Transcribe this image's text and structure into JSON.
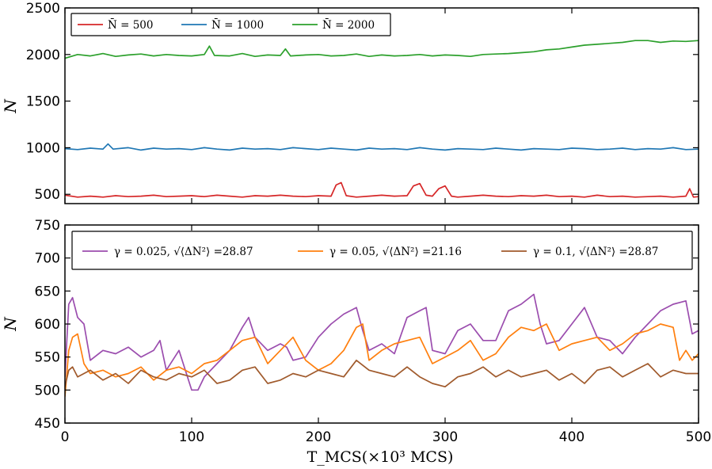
{
  "chart_data": [
    {
      "type": "line",
      "ylabel": "N",
      "ylim": [
        400,
        2500
      ],
      "xlim": [
        0,
        500
      ],
      "yticks": [
        "500",
        "1000",
        "1500",
        "2000",
        "2500"
      ],
      "legend": {
        "location": "top-left",
        "entries": [
          "N̄ = 500",
          "N̄ = 1000",
          "N̄ = 2000"
        ]
      },
      "series": [
        {
          "name": "N̄ = 500",
          "color": "#d62728",
          "x": [
            0,
            10,
            20,
            30,
            40,
            50,
            60,
            70,
            80,
            90,
            100,
            110,
            120,
            130,
            140,
            150,
            160,
            170,
            180,
            190,
            200,
            210,
            214,
            218,
            222,
            230,
            240,
            250,
            260,
            270,
            275,
            280,
            285,
            290,
            295,
            300,
            305,
            310,
            320,
            330,
            340,
            350,
            360,
            370,
            380,
            390,
            400,
            410,
            420,
            430,
            440,
            450,
            460,
            470,
            480,
            490,
            493,
            496,
            500
          ],
          "y": [
            490,
            470,
            480,
            470,
            485,
            475,
            480,
            490,
            475,
            480,
            485,
            475,
            490,
            480,
            470,
            485,
            480,
            490,
            480,
            475,
            485,
            480,
            600,
            625,
            485,
            470,
            480,
            490,
            480,
            485,
            590,
            615,
            490,
            480,
            560,
            590,
            480,
            470,
            480,
            490,
            480,
            475,
            485,
            480,
            490,
            475,
            480,
            470,
            490,
            475,
            480,
            470,
            475,
            480,
            470,
            480,
            560,
            470,
            475
          ]
        },
        {
          "name": "N̄ = 1000",
          "color": "#1f77b4",
          "x": [
            0,
            10,
            20,
            30,
            34,
            38,
            50,
            60,
            70,
            80,
            90,
            100,
            110,
            120,
            130,
            140,
            150,
            160,
            170,
            180,
            190,
            200,
            210,
            220,
            230,
            240,
            250,
            260,
            270,
            280,
            290,
            300,
            310,
            320,
            330,
            340,
            350,
            360,
            370,
            380,
            390,
            400,
            410,
            420,
            430,
            440,
            450,
            460,
            470,
            480,
            490,
            500
          ],
          "y": [
            990,
            980,
            995,
            985,
            1040,
            985,
            1000,
            975,
            995,
            985,
            990,
            980,
            1000,
            985,
            975,
            995,
            985,
            990,
            980,
            1000,
            990,
            980,
            995,
            985,
            975,
            995,
            985,
            990,
            980,
            1000,
            985,
            975,
            990,
            985,
            980,
            995,
            985,
            975,
            990,
            985,
            980,
            995,
            990,
            980,
            985,
            995,
            980,
            990,
            985,
            1000,
            980,
            985
          ]
        },
        {
          "name": "N̄ = 2000",
          "color": "#2ca02c",
          "x": [
            0,
            10,
            20,
            30,
            40,
            50,
            60,
            70,
            80,
            90,
            100,
            110,
            114,
            118,
            130,
            140,
            150,
            160,
            170,
            174,
            178,
            190,
            200,
            210,
            220,
            230,
            240,
            250,
            260,
            270,
            280,
            290,
            300,
            310,
            320,
            330,
            340,
            350,
            360,
            370,
            380,
            390,
            400,
            410,
            420,
            430,
            440,
            450,
            460,
            470,
            480,
            490,
            500
          ],
          "y": [
            1960,
            2000,
            1985,
            2010,
            1980,
            1995,
            2005,
            1985,
            2000,
            1990,
            1985,
            2000,
            2090,
            1990,
            1985,
            2010,
            1980,
            1995,
            1990,
            2060,
            1985,
            1995,
            2000,
            1985,
            1990,
            2005,
            1980,
            1995,
            1985,
            1990,
            2000,
            1985,
            1995,
            1990,
            1980,
            2000,
            2005,
            2010,
            2020,
            2030,
            2050,
            2060,
            2080,
            2100,
            2110,
            2120,
            2130,
            2150,
            2150,
            2130,
            2145,
            2140,
            2150
          ]
        }
      ]
    },
    {
      "type": "line",
      "xlabel": "T_MCS(×10³ MCS)",
      "ylabel": "N",
      "xlim": [
        0,
        500
      ],
      "ylim": [
        450,
        750
      ],
      "xticks": [
        "0",
        "100",
        "200",
        "300",
        "400",
        "500"
      ],
      "yticks": [
        "450",
        "500",
        "550",
        "600",
        "650",
        "700",
        "750"
      ],
      "legend": {
        "location": "top",
        "entries": [
          "γ = 0.025, √⟨ΔN²⟩ =28.87",
          "γ = 0.05, √⟨ΔN²⟩ =21.16",
          "γ = 0.1, √⟨ΔN²⟩ =28.87"
        ]
      },
      "series": [
        {
          "name": "γ = 0.025, √⟨ΔN²⟩ =28.87",
          "color": "#9b4dae",
          "x": [
            0,
            3,
            6,
            10,
            15,
            20,
            30,
            40,
            50,
            60,
            70,
            75,
            80,
            90,
            100,
            105,
            110,
            120,
            130,
            140,
            145,
            150,
            160,
            170,
            175,
            180,
            190,
            200,
            210,
            220,
            230,
            235,
            240,
            250,
            260,
            270,
            280,
            285,
            290,
            300,
            310,
            320,
            330,
            340,
            350,
            360,
            370,
            375,
            380,
            390,
            400,
            410,
            420,
            430,
            440,
            450,
            460,
            470,
            480,
            490,
            495,
            500
          ],
          "y": [
            520,
            630,
            640,
            610,
            600,
            545,
            560,
            555,
            565,
            550,
            560,
            575,
            530,
            560,
            500,
            500,
            520,
            540,
            560,
            595,
            610,
            580,
            560,
            570,
            565,
            545,
            550,
            580,
            600,
            615,
            625,
            590,
            560,
            570,
            555,
            610,
            620,
            625,
            560,
            555,
            590,
            600,
            575,
            575,
            620,
            630,
            645,
            600,
            570,
            575,
            600,
            625,
            580,
            575,
            555,
            580,
            600,
            620,
            630,
            635,
            585,
            590
          ]
        },
        {
          "name": "γ = 0.05, √⟨ΔN²⟩ =21.16",
          "color": "#ff7f0e",
          "x": [
            0,
            3,
            6,
            10,
            15,
            20,
            30,
            40,
            50,
            60,
            70,
            80,
            90,
            100,
            110,
            120,
            130,
            140,
            150,
            160,
            170,
            180,
            190,
            200,
            210,
            220,
            230,
            235,
            240,
            250,
            260,
            270,
            280,
            290,
            300,
            310,
            320,
            330,
            340,
            350,
            360,
            370,
            380,
            390,
            400,
            410,
            420,
            430,
            440,
            450,
            460,
            470,
            480,
            485,
            490,
            495,
            500
          ],
          "y": [
            490,
            560,
            580,
            585,
            540,
            525,
            530,
            520,
            525,
            535,
            515,
            530,
            535,
            525,
            540,
            545,
            560,
            575,
            580,
            540,
            560,
            580,
            545,
            530,
            540,
            560,
            595,
            600,
            545,
            560,
            570,
            575,
            580,
            540,
            550,
            560,
            575,
            545,
            555,
            580,
            595,
            590,
            600,
            560,
            570,
            575,
            580,
            560,
            570,
            585,
            590,
            600,
            595,
            545,
            560,
            545,
            555
          ]
        },
        {
          "name": "γ = 0.1, √⟨ΔN²⟩ =28.87",
          "color": "#a05a2c",
          "x": [
            0,
            3,
            6,
            10,
            20,
            30,
            40,
            50,
            60,
            70,
            80,
            90,
            100,
            110,
            120,
            130,
            140,
            150,
            160,
            170,
            180,
            190,
            200,
            210,
            220,
            230,
            240,
            250,
            260,
            270,
            280,
            290,
            300,
            310,
            320,
            330,
            340,
            350,
            360,
            370,
            380,
            390,
            400,
            410,
            420,
            430,
            440,
            450,
            460,
            470,
            480,
            490,
            500
          ],
          "y": [
            505,
            530,
            535,
            520,
            530,
            515,
            525,
            510,
            530,
            520,
            515,
            525,
            520,
            530,
            510,
            515,
            530,
            535,
            510,
            515,
            525,
            520,
            530,
            525,
            520,
            545,
            530,
            525,
            520,
            535,
            520,
            510,
            505,
            520,
            525,
            535,
            520,
            530,
            520,
            525,
            530,
            515,
            525,
            510,
            530,
            535,
            520,
            530,
            540,
            520,
            530,
            525,
            525
          ]
        }
      ]
    }
  ]
}
